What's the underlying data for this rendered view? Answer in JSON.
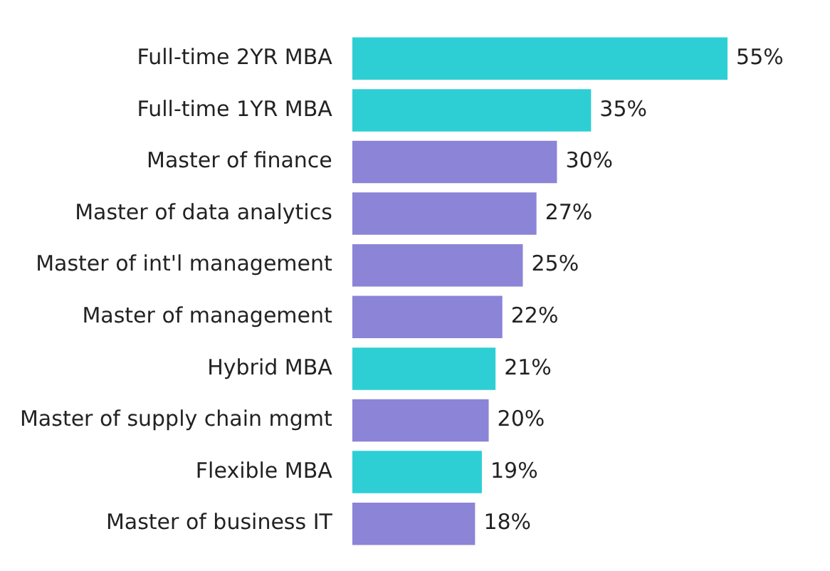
{
  "chart_data": {
    "type": "bar",
    "orientation": "horizontal",
    "categories": [
      "Full-time 2YR MBA",
      "Full-time 1YR MBA",
      "Master of finance",
      "Master of data analytics",
      "Master of int'l management",
      "Master of management",
      "Hybrid MBA",
      "Master of supply chain mgmt",
      "Flexible MBA",
      "Master of business IT"
    ],
    "values": [
      55,
      35,
      30,
      27,
      25,
      22,
      21,
      20,
      19,
      18
    ],
    "value_labels": [
      "55%",
      "35%",
      "30%",
      "27%",
      "25%",
      "22%",
      "21%",
      "20%",
      "19%",
      "18%"
    ],
    "colors": [
      "#2ecfd4",
      "#2ecfd4",
      "#8b84d7",
      "#8b84d7",
      "#8b84d7",
      "#8b84d7",
      "#2ecfd4",
      "#8b84d7",
      "#2ecfd4",
      "#8b84d7"
    ],
    "grid": false,
    "legend": false
  }
}
